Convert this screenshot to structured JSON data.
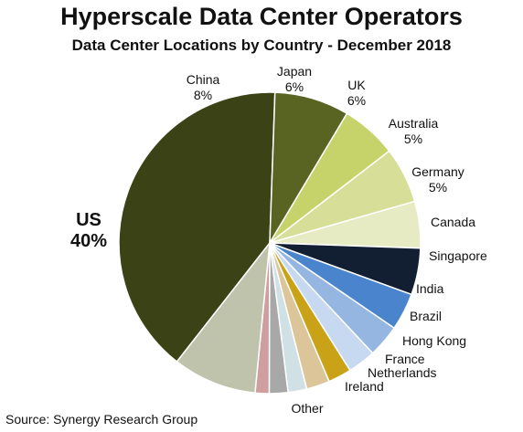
{
  "title": "Hyperscale Data Center Operators",
  "subtitle": "Data Center Locations by Country - December 2018",
  "source": "Source: Synergy Research Group",
  "chart_data": {
    "type": "pie",
    "title": "Hyperscale Data Center Operators",
    "subtitle": "Data Center Locations by Country - December 2018",
    "slices": [
      {
        "label": "US",
        "value": 40,
        "value_label": "40%",
        "color": "#3a4216"
      },
      {
        "label": "China",
        "value": 8,
        "value_label": "8%",
        "color": "#5a6422"
      },
      {
        "label": "Japan",
        "value": 6,
        "value_label": "6%",
        "color": "#c6d36b"
      },
      {
        "label": "UK",
        "value": 6,
        "value_label": "6%",
        "color": "#d6de98"
      },
      {
        "label": "Australia",
        "value": 5,
        "value_label": "5%",
        "color": "#e6ebc4"
      },
      {
        "label": "Germany",
        "value": 5,
        "value_label": "5%",
        "color": "#121f33"
      },
      {
        "label": "Canada",
        "value": 4,
        "value_label": "",
        "color": "#4a84cc"
      },
      {
        "label": "Singapore",
        "value": 3.5,
        "value_label": "",
        "color": "#95b6e0"
      },
      {
        "label": "India",
        "value": 3,
        "value_label": "",
        "color": "#c6d9f0"
      },
      {
        "label": "Brazil",
        "value": 2.5,
        "value_label": "",
        "color": "#c9a217"
      },
      {
        "label": "Hong Kong",
        "value": 2.5,
        "value_label": "",
        "color": "#dbc599"
      },
      {
        "label": "France",
        "value": 2,
        "value_label": "",
        "color": "#cfe1e4"
      },
      {
        "label": "Netherlands",
        "value": 2,
        "value_label": "",
        "color": "#a8a8a8"
      },
      {
        "label": "Ireland",
        "value": 1.5,
        "value_label": "",
        "color": "#cf9f9f"
      },
      {
        "label": "Other",
        "value": 9,
        "value_label": "",
        "color": "#c0c3ab"
      }
    ]
  }
}
